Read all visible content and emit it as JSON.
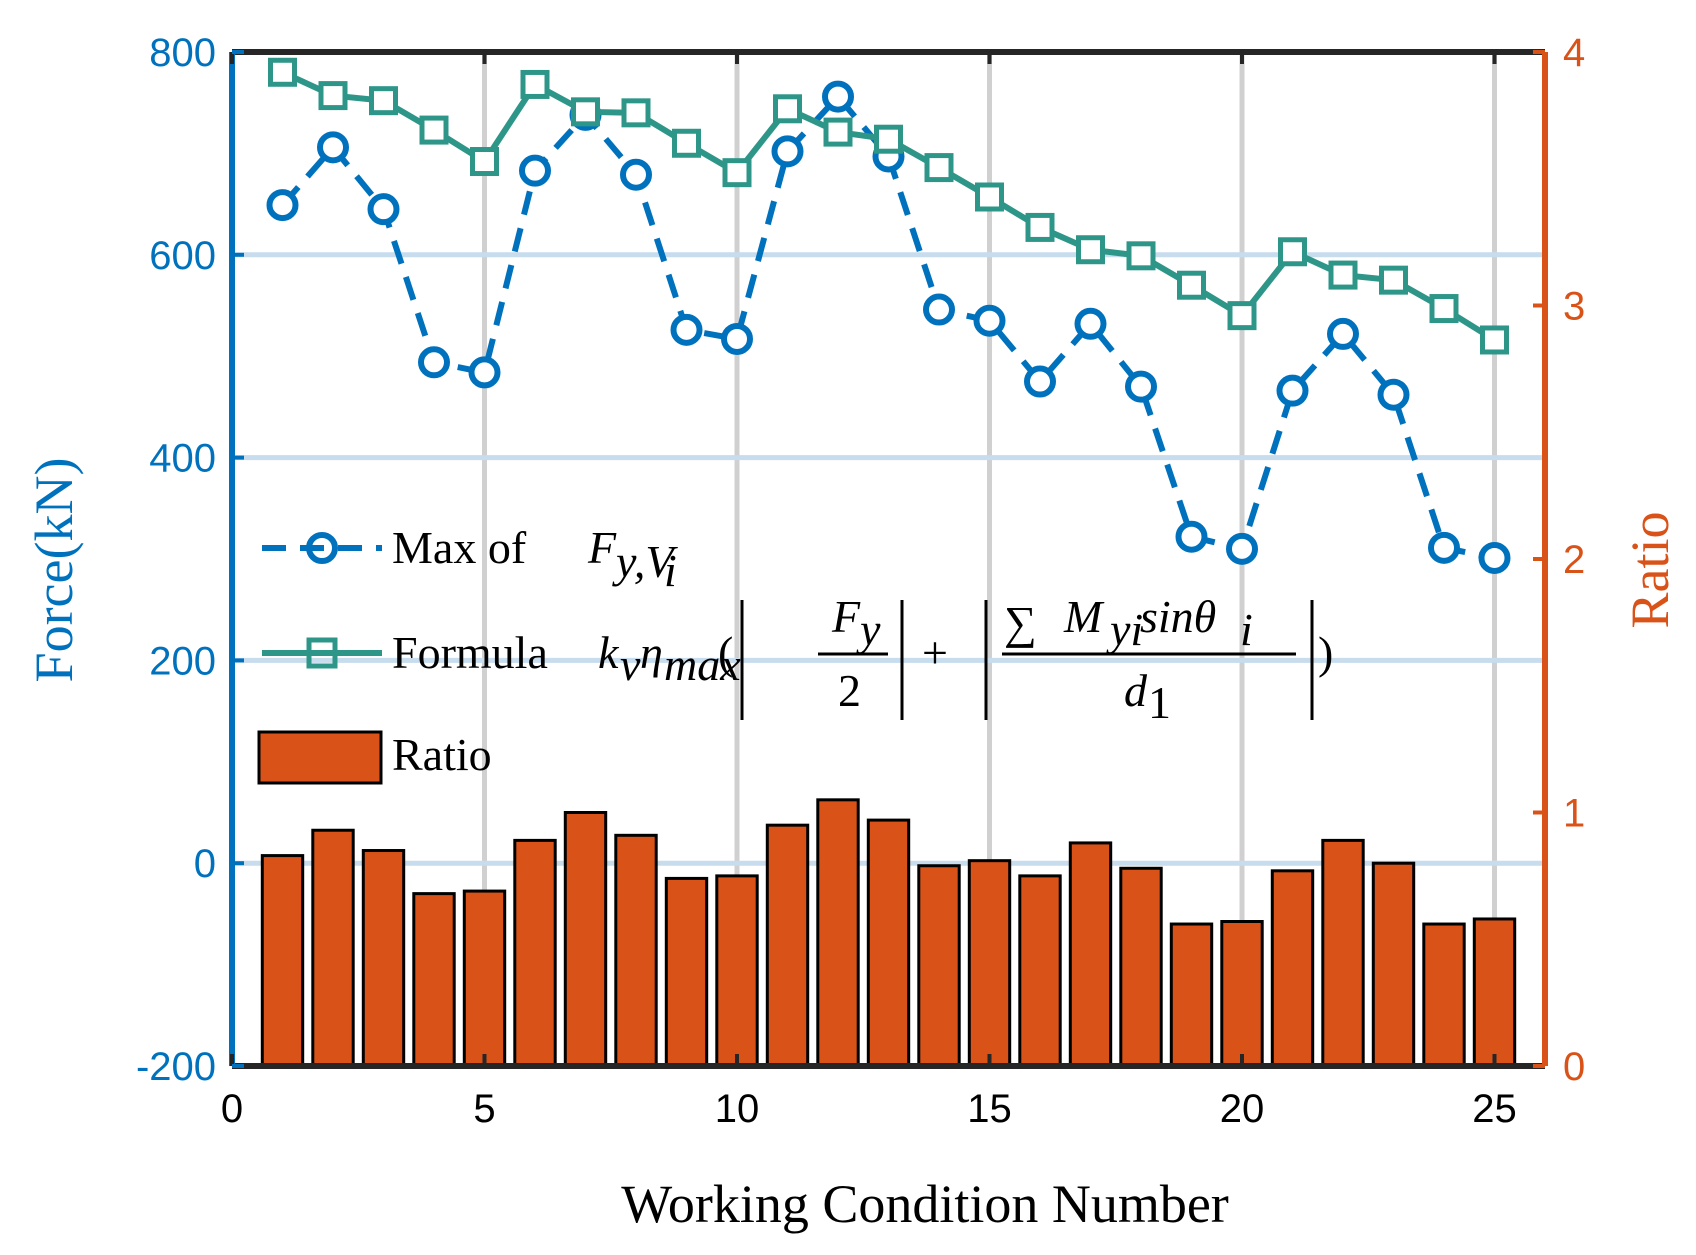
{
  "chart_data": {
    "type": "bar+line",
    "xlabel": "Working Condition Number",
    "ylabel_left": "Force(kN)",
    "ylabel_right": "Ratio",
    "xlim": [
      0,
      26
    ],
    "ylim_left": [
      -200,
      800
    ],
    "ylim_right": [
      0,
      4
    ],
    "x_ticks": [
      "0",
      "5",
      "10",
      "15",
      "20",
      "25"
    ],
    "x_tick_values": [
      0,
      5,
      10,
      15,
      20,
      25
    ],
    "y_left_ticks": [
      "-200",
      "0",
      "200",
      "400",
      "600",
      "800"
    ],
    "y_left_tick_values": [
      -200,
      0,
      200,
      400,
      600,
      800
    ],
    "y_right_ticks": [
      "0",
      "1",
      "2",
      "3",
      "4"
    ],
    "y_right_tick_values": [
      0,
      1,
      2,
      3,
      4
    ],
    "x": [
      1,
      2,
      3,
      4,
      5,
      6,
      7,
      8,
      9,
      10,
      11,
      12,
      13,
      14,
      15,
      16,
      17,
      18,
      19,
      20,
      21,
      22,
      23,
      24,
      25
    ],
    "series": [
      {
        "name": "Max of F_{y,V_i}",
        "axis": "left",
        "style": "dashed-circle",
        "color": "#0072BD",
        "values": [
          649,
          706,
          645,
          494,
          484,
          683,
          738,
          679,
          526,
          517,
          702,
          756,
          697,
          546,
          535,
          475,
          532,
          470,
          322,
          310,
          466,
          522,
          462,
          311,
          301
        ]
      },
      {
        "name": "Formula",
        "axis": "left",
        "style": "solid-square",
        "color": "#2E9688",
        "values": [
          780,
          757,
          752,
          723,
          692,
          768,
          741,
          740,
          710,
          681,
          744,
          721,
          714,
          686,
          657,
          627,
          605,
          599,
          570,
          540,
          603,
          580,
          575,
          547,
          516
        ]
      },
      {
        "name": "Ratio",
        "axis": "right",
        "style": "bar",
        "color": "#D95319",
        "values": [
          0.83,
          0.93,
          0.85,
          0.68,
          0.69,
          0.89,
          1.0,
          0.91,
          0.74,
          0.75,
          0.95,
          1.05,
          0.97,
          0.79,
          0.81,
          0.75,
          0.88,
          0.78,
          0.56,
          0.57,
          0.77,
          0.89,
          0.8,
          0.56,
          0.58
        ]
      }
    ],
    "legend": {
      "position": "center-left",
      "entries": [
        {
          "label_text": "Max of ",
          "label_math": "F_{y,V_i}"
        },
        {
          "label_text": "Formula ",
          "label_math": "k_v η_max ( |F_y / 2| + |∑ M_yi sinθ_i / d_1| )"
        },
        {
          "label_text": "Ratio"
        }
      ]
    },
    "colors": {
      "left_axis": "#0072BD",
      "right_axis": "#D95319",
      "grid": "#d0d0d0",
      "grid_h": "#c7dced"
    }
  }
}
